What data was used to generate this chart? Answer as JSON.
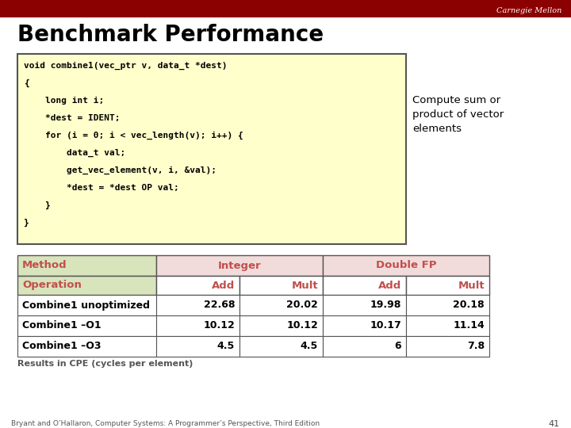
{
  "title": "Benchmark Performance",
  "carnegie_mellon_text": "Carnegie Mellon",
  "top_bar_color": "#8B0000",
  "bg_color": "#FFFFFF",
  "code_lines": [
    "void combine1(vec_ptr v, data_t *dest)",
    "{",
    "    long int i;",
    "    *dest = IDENT;",
    "    for (i = 0; i < vec_length(v); i++) {",
    "        data_t val;",
    "        get_vec_element(v, i, &val);",
    "        *dest = *dest OP val;",
    "    }",
    "}"
  ],
  "code_bg": "#FFFFCC",
  "annotation_lines": [
    "Compute sum or",
    "product of vector",
    "elements"
  ],
  "table_rows": [
    [
      "Combine1 unoptimized",
      "22.68",
      "20.02",
      "19.98",
      "20.18"
    ],
    [
      "Combine1 –O1",
      "10.12",
      "10.12",
      "10.17",
      "11.14"
    ],
    [
      "Combine1 –O3",
      "4.5",
      "4.5",
      "6",
      "7.8"
    ]
  ],
  "results_text": "Results in CPE (cycles per element)",
  "footer_text": "Bryant and O’Hallaron, Computer Systems: A Programmer’s Perspective, Third Edition",
  "page_number": "41",
  "header_red": "#C0504D",
  "method_green_bg": "#D8E4BC",
  "integer_pink_bg": "#F2DCDB",
  "doublefp_pink_bg": "#F2DCDB",
  "table_border": "#555555"
}
